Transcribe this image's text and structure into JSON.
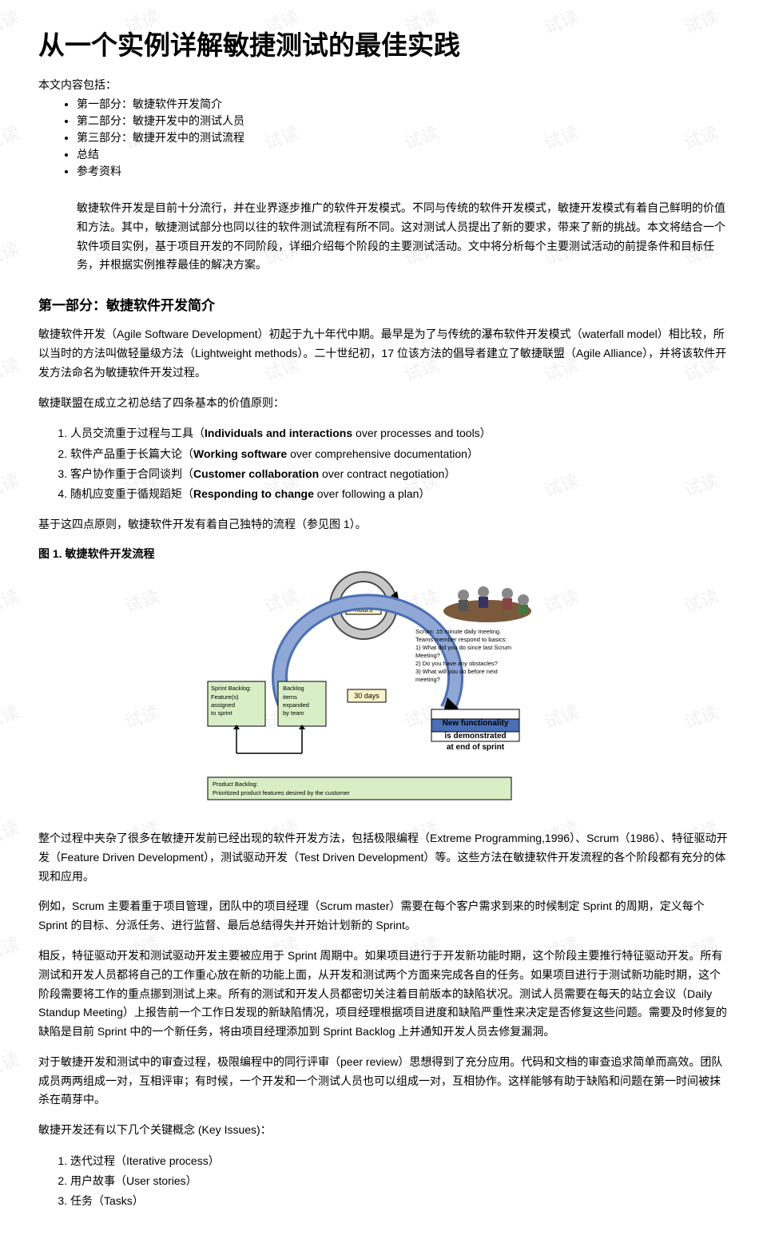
{
  "title": "从一个实例详解敏捷测试的最佳实践",
  "toc_intro": "本文内容包括：",
  "toc": [
    "第一部分：敏捷软件开发简介",
    "第二部分：敏捷开发中的测试人员",
    "第三部分：敏捷开发中的测试流程",
    "总结",
    "参考资料"
  ],
  "intro_block": "敏捷软件开发是目前十分流行，并在业界逐步推广的软件开发模式。不同与传统的软件开发模式，敏捷开发模式有着自己鲜明的价值和方法。其中，敏捷测试部分也同以往的软件测试流程有所不同。这对测试人员提出了新的要求，带来了新的挑战。本文将结合一个软件项目实例，基于项目开发的不同阶段，详细介绍每个阶段的主要测试活动。文中将分析每个主要测试活动的前提条件和目标任务，并根据实例推荐最佳的解决方案。",
  "h2_part1": "第一部分：敏捷软件开发简介",
  "p1": "敏捷软件开发（Agile Software Development）初起于九十年代中期。最早是为了与传统的瀑布软件开发模式（waterfall model）相比较，所以当时的方法叫做轻量级方法（Lightweight methods）。二十世纪初，17 位该方法的倡导者建立了敏捷联盟（Agile Alliance），并将该软件开发方法命名为敏捷软件开发过程。",
  "p2": "敏捷联盟在成立之初总结了四条基本的价值原则：",
  "principles": [
    {
      "zh": "人员交流重于过程与工具（",
      "bold": "Individuals and interactions",
      "rest": " over processes and tools）"
    },
    {
      "zh": "软件产品重于长篇大论（",
      "bold": "Working software",
      "rest": " over comprehensive documentation）"
    },
    {
      "zh": "客户协作重于合同谈判（",
      "bold": "Customer collaboration",
      "rest": " over contract negotiation）"
    },
    {
      "zh": "随机应变重于循规蹈矩（",
      "bold": "Responding to change",
      "rest": " over following a plan）"
    }
  ],
  "p3": "基于这四点原则，敏捷软件开发有着自己独特的流程（参见图 1）。",
  "fig_caption": "图 1. 敏捷软件开发流程",
  "figure": {
    "loop24_label": "every 24\nhours",
    "loop30_label": "30 days",
    "sprint_backlog_title": "Sprint Backlog:",
    "sprint_backlog_lines": [
      "Feature(s)",
      "assigned",
      "to sprint"
    ],
    "backlog_title": "Backlog",
    "backlog_lines": [
      "items",
      "expanded",
      "by team"
    ],
    "product_backlog_title": "Product Backlog:",
    "product_backlog_line": "Prioritized product features desired by the customer",
    "scrum_text_lines": [
      "Scrum: 15 minute daily meeting.",
      "Teams member respond to basics:",
      "1) What did you do since last Scrum",
      "Meeting?",
      "2) Do you have any obstacles?",
      "3) What will you do before next",
      "meeting?"
    ],
    "result_lines": [
      "New functionality",
      "is demonstrated",
      "at end of sprint"
    ],
    "colors": {
      "box_green": "#d8efc6",
      "box_yellow": "#f9f3c8",
      "box_blue": "#4a6fb5",
      "arc_gray": "#c8c8c8",
      "arc_dark": "#4a4a4a",
      "arrow": "#000000"
    }
  },
  "p4": "整个过程中夹杂了很多在敏捷开发前已经出现的软件开发方法，包括极限编程（Extreme Programming,1996）、Scrum（1986）、特征驱动开发（Feature Driven Development），测试驱动开发（Test Driven Development）等。这些方法在敏捷软件开发流程的各个阶段都有充分的体现和应用。",
  "p5": "例如，Scrum 主要着重于项目管理，团队中的项目经理（Scrum master）需要在每个客户需求到来的时候制定 Sprint 的周期，定义每个 Sprint 的目标、分派任务、进行监督、最后总结得失并开始计划新的 Sprint。",
  "p6": "相反，特征驱动开发和测试驱动开发主要被应用于 Sprint 周期中。如果项目进行于开发新功能时期，这个阶段主要推行特征驱动开发。所有测试和开发人员都将自己的工作重心放在新的功能上面，从开发和测试两个方面来完成各自的任务。如果项目进行于测试新功能时期，这个阶段需要将工作的重点挪到测试上来。所有的测试和开发人员都密切关注着目前版本的缺陷状况。测试人员需要在每天的站立会议（Daily Standup Meeting）上报告前一个工作日发现的新缺陷情况，项目经理根据项目进度和缺陷严重性来决定是否修复这些问题。需要及时修复的缺陷是目前 Sprint 中的一个新任务，将由项目经理添加到 Sprint Backlog 上并通知开发人员去修复漏洞。",
  "p7": "对于敏捷开发和测试中的审查过程，极限编程中的同行评审（peer review）思想得到了充分应用。代码和文档的审查追求简单而高效。团队成员两两组成一对，互相评审；有时候，一个开发和一个测试人员也可以组成一对，互相协作。这样能够有助于缺陷和问题在第一时间被抹杀在萌芽中。",
  "p8": "敏捷开发还有以下几个关键概念 (Key Issues)：",
  "key_issues": [
    "迭代过程（Iterative process）",
    "用户故事（User stories）",
    "任务（Tasks）"
  ],
  "watermark_text": "试读"
}
